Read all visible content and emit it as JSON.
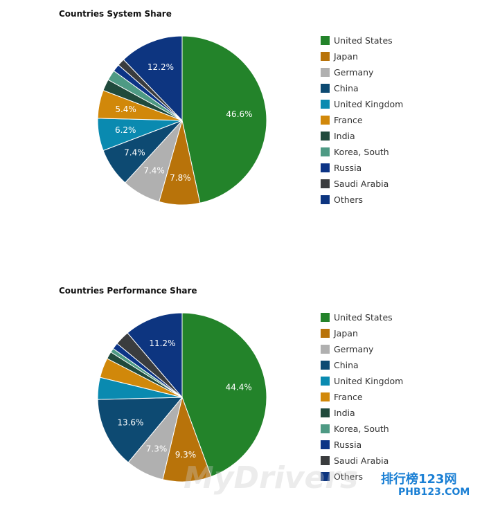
{
  "chart_data": [
    {
      "type": "pie",
      "title": "Countries System Share",
      "categories": [
        "United States",
        "Japan",
        "Germany",
        "China",
        "United Kingdom",
        "France",
        "India",
        "Korea, South",
        "Russia",
        "Saudi Arabia",
        "Others"
      ],
      "values": [
        46.6,
        7.8,
        7.4,
        7.4,
        6.2,
        5.4,
        2.2,
        2.0,
        1.4,
        1.4,
        12.2
      ],
      "labels": [
        "46.6%",
        "7.8%",
        "7.4%",
        "7.4%",
        "6.2%",
        "5.4%",
        "",
        "",
        "",
        "",
        "12.2%"
      ],
      "legend_position": "right"
    },
    {
      "type": "pie",
      "title": "Countries Performance Share",
      "categories": [
        "United States",
        "Japan",
        "Germany",
        "China",
        "United Kingdom",
        "France",
        "India",
        "Korea, South",
        "Russia",
        "Saudi Arabia",
        "Others"
      ],
      "values": [
        44.4,
        9.3,
        7.3,
        13.6,
        4.2,
        3.8,
        1.4,
        0.8,
        1.2,
        2.8,
        11.2
      ],
      "labels": [
        "44.4%",
        "9.3%",
        "7.3%",
        "13.6%",
        "",
        "",
        "",
        "",
        "",
        "",
        "11.2%"
      ],
      "legend_position": "right"
    }
  ],
  "colors": [
    "#23832a",
    "#b8730a",
    "#b0b0b0",
    "#0d4a72",
    "#0a8ab0",
    "#d1880a",
    "#204a3c",
    "#4e9a84",
    "#0c3486",
    "#3a3c3e",
    "#0d3580"
  ],
  "watermark": {
    "text1": "MyDrivers",
    "text2": "排行榜123网",
    "text3": "PHB123.COM"
  }
}
